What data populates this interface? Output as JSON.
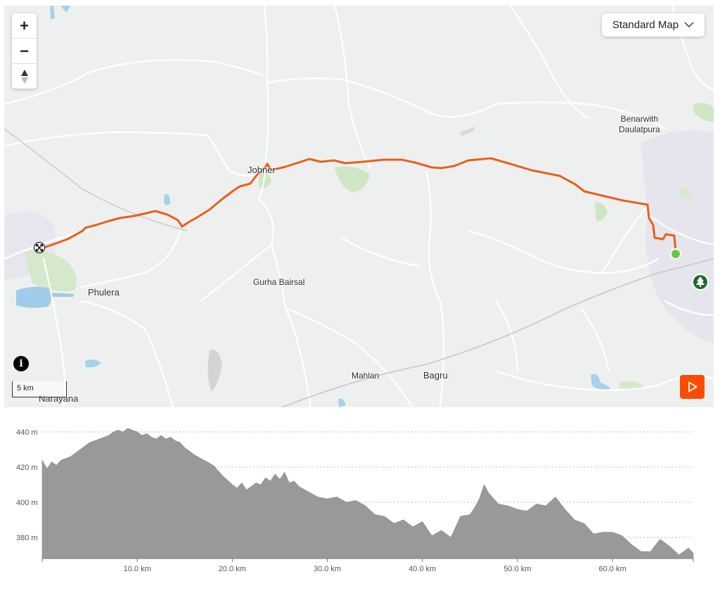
{
  "map": {
    "places": {
      "jobner": "Jobner",
      "phulera": "Phulera",
      "gurha_bairsal": "Gurha Bairsal",
      "benarwith_line1": "Benarwith",
      "benarwith_line2": "Daulatpura",
      "mahlan": "Mahlan",
      "bagru": "Bagru",
      "narayana": "Narayana"
    },
    "map_type_label": "Standard Map",
    "zoom_in_label": "+",
    "zoom_out_label": "−",
    "info_label": "i",
    "scale_label": "5 km",
    "route_color": "#e8601c",
    "start_marker_color": "#6cc644",
    "park_marker_color": "#1f6b33",
    "play_button_color": "#fc4c02"
  },
  "chart_data": {
    "type": "area",
    "ylabels": [
      "440 m",
      "420 m",
      "400 m",
      "380 m"
    ],
    "ylim": [
      368,
      446
    ],
    "yticks": [
      440,
      420,
      400,
      380
    ],
    "xlabels": [
      "10.0 km",
      "20.0 km",
      "30.0 km",
      "40.0 km",
      "50.0 km",
      "60.0 km"
    ],
    "xticks": [
      10,
      20,
      30,
      40,
      50,
      60
    ],
    "xlim": [
      0,
      68.5
    ],
    "grid": true,
    "fill_color": "#999999",
    "x": [
      0,
      0.5,
      1,
      1.5,
      2,
      3,
      4,
      5,
      6,
      7,
      7.5,
      8,
      8.5,
      9,
      9.5,
      10,
      10.5,
      11,
      11.5,
      12,
      12.5,
      13,
      13.5,
      14,
      14.5,
      15,
      16,
      17,
      18,
      19,
      20,
      20.5,
      21,
      21.5,
      22,
      22.5,
      23,
      23.5,
      24,
      24.5,
      25,
      25.5,
      26,
      26.5,
      27,
      28,
      29,
      30,
      31,
      32,
      33,
      34,
      35,
      36,
      37,
      38,
      39,
      40,
      41,
      42,
      43,
      44,
      45,
      45.5,
      46,
      46.5,
      47,
      48,
      49,
      50,
      51,
      52,
      53,
      54,
      55,
      56,
      57,
      58,
      59,
      60,
      61,
      62,
      63,
      64,
      65,
      66,
      67,
      68,
      68.5
    ],
    "y": [
      424,
      419,
      423,
      421,
      424,
      426,
      430,
      434,
      436,
      438,
      440,
      441,
      440,
      442,
      441,
      440,
      438,
      439,
      437,
      436,
      438,
      436,
      437,
      435,
      434,
      431,
      427,
      424,
      421,
      415,
      410,
      408,
      411,
      407,
      409,
      411,
      410,
      414,
      412,
      416,
      413,
      417,
      411,
      412,
      409,
      406,
      403,
      402,
      403,
      400,
      401,
      398,
      393,
      392,
      388,
      390,
      386,
      389,
      381,
      384,
      380,
      392,
      393,
      397,
      402,
      410,
      405,
      399,
      398,
      396,
      395,
      399,
      398,
      403,
      396,
      390,
      388,
      382,
      383,
      383,
      381,
      376,
      372,
      372,
      379,
      375,
      370,
      374,
      371
    ]
  }
}
